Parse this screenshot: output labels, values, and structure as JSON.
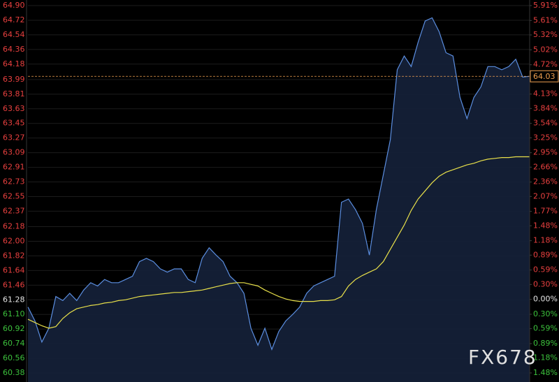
{
  "chart_data": {
    "type": "line",
    "watermark": "FX678",
    "base_value": 61.28,
    "up_color": "#e8403f",
    "down_color": "#3cc13c",
    "base_color": "#e6e6e6",
    "last_price": 64.03,
    "last_color": "#f0a050",
    "ylim": [
      60.38,
      64.9
    ],
    "yticks": [
      {
        "value": 64.9,
        "label": "64.90"
      },
      {
        "value": 64.72,
        "label": "64.72"
      },
      {
        "value": 64.54,
        "label": "64.54"
      },
      {
        "value": 64.36,
        "label": "64.36"
      },
      {
        "value": 64.18,
        "label": "64.18"
      },
      {
        "value": 63.99,
        "label": "63.99"
      },
      {
        "value": 63.81,
        "label": "63.81"
      },
      {
        "value": 63.63,
        "label": "63.63"
      },
      {
        "value": 63.45,
        "label": "63.45"
      },
      {
        "value": 63.27,
        "label": "63.27"
      },
      {
        "value": 63.09,
        "label": "63.09"
      },
      {
        "value": 62.91,
        "label": "62.91"
      },
      {
        "value": 62.73,
        "label": "62.73"
      },
      {
        "value": 62.55,
        "label": "62.55"
      },
      {
        "value": 62.37,
        "label": "62.37"
      },
      {
        "value": 62.18,
        "label": "62.18"
      },
      {
        "value": 62.0,
        "label": "62.00"
      },
      {
        "value": 61.82,
        "label": "61.82"
      },
      {
        "value": 61.64,
        "label": "61.64"
      },
      {
        "value": 61.46,
        "label": "61.46"
      },
      {
        "value": 61.28,
        "label": "61.28"
      },
      {
        "value": 61.1,
        "label": "61.10"
      },
      {
        "value": 60.92,
        "label": "60.92"
      },
      {
        "value": 60.74,
        "label": "60.74"
      },
      {
        "value": 60.56,
        "label": "60.56"
      },
      {
        "value": 60.38,
        "label": "60.38"
      }
    ],
    "y2lim": [
      -1.48,
      5.91
    ],
    "y2ticks": [
      {
        "value": 5.91,
        "label": "5.91%"
      },
      {
        "value": 5.61,
        "label": "5.61%"
      },
      {
        "value": 5.32,
        "label": "5.32%"
      },
      {
        "value": 5.02,
        "label": "5.02%"
      },
      {
        "value": 4.72,
        "label": "4.72%"
      },
      {
        "value": 4.13,
        "label": "4.13%"
      },
      {
        "value": 3.84,
        "label": "3.84%"
      },
      {
        "value": 3.54,
        "label": "3.54%"
      },
      {
        "value": 3.25,
        "label": "3.25%"
      },
      {
        "value": 2.95,
        "label": "2.95%"
      },
      {
        "value": 2.66,
        "label": "2.66%"
      },
      {
        "value": 2.36,
        "label": "2.36%"
      },
      {
        "value": 2.07,
        "label": "2.07%"
      },
      {
        "value": 1.77,
        "label": "1.77%"
      },
      {
        "value": 1.48,
        "label": "1.48%"
      },
      {
        "value": 1.18,
        "label": "1.18%"
      },
      {
        "value": 0.89,
        "label": "0.89%"
      },
      {
        "value": 0.59,
        "label": "0.59%"
      },
      {
        "value": 0.3,
        "label": "0.30%"
      },
      {
        "value": 0.0,
        "label": "0.00%"
      },
      {
        "value": -0.3,
        "label": "0.30%"
      },
      {
        "value": -0.59,
        "label": "0.59%"
      },
      {
        "value": -0.89,
        "label": "0.89%"
      },
      {
        "value": -1.18,
        "label": "1.18%"
      },
      {
        "value": -1.48,
        "label": "1.48%"
      }
    ],
    "series": [
      {
        "color": "#5b8ee0",
        "fill": "#15213a",
        "values": [
          61.19,
          61.02,
          60.76,
          60.93,
          61.32,
          61.27,
          61.36,
          61.27,
          61.4,
          61.49,
          61.45,
          61.53,
          61.49,
          61.49,
          61.53,
          61.57,
          61.75,
          61.79,
          61.75,
          61.66,
          61.62,
          61.66,
          61.66,
          61.53,
          61.49,
          61.79,
          61.92,
          61.83,
          61.75,
          61.57,
          61.49,
          61.36,
          60.93,
          60.72,
          60.93,
          60.67,
          60.89,
          61.02,
          61.1,
          61.19,
          61.36,
          61.45,
          61.49,
          61.53,
          61.57,
          62.48,
          62.52,
          62.39,
          62.22,
          61.83,
          62.39,
          62.82,
          63.25,
          64.11,
          64.28,
          64.15,
          64.45,
          64.71,
          64.75,
          64.58,
          64.32,
          64.28,
          63.77,
          63.51,
          63.77,
          63.9,
          64.15,
          64.15,
          64.11,
          64.15,
          64.24,
          64.02,
          64.03
        ]
      },
      {
        "color": "#e8e04a",
        "values": [
          61.04,
          61.0,
          60.96,
          60.93,
          60.95,
          61.05,
          61.12,
          61.17,
          61.19,
          61.21,
          61.22,
          61.24,
          61.25,
          61.27,
          61.28,
          61.3,
          61.32,
          61.33,
          61.34,
          61.35,
          61.36,
          61.37,
          61.37,
          61.38,
          61.39,
          61.4,
          61.42,
          61.44,
          61.46,
          61.48,
          61.49,
          61.49,
          61.47,
          61.45,
          61.4,
          61.36,
          61.32,
          61.29,
          61.27,
          61.26,
          61.26,
          61.26,
          61.27,
          61.27,
          61.28,
          61.32,
          61.45,
          61.53,
          61.58,
          61.62,
          61.66,
          61.75,
          61.9,
          62.05,
          62.2,
          62.38,
          62.52,
          62.62,
          62.72,
          62.8,
          62.85,
          62.88,
          62.91,
          62.94,
          62.96,
          62.99,
          63.01,
          63.02,
          63.03,
          63.03,
          63.04,
          63.04,
          63.04
        ]
      }
    ]
  }
}
